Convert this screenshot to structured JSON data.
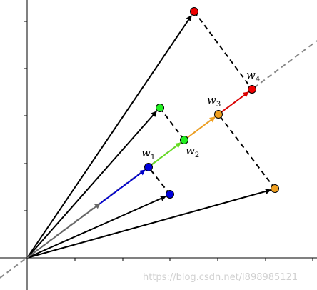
{
  "nodes": [
    {
      "base": "w",
      "sub": "1"
    },
    {
      "base": "w",
      "sub": "2"
    },
    {
      "base": "w",
      "sub": "3"
    },
    {
      "base": "w",
      "sub": "4"
    }
  ],
  "watermark": "https://blog.csdn.net/l898985121"
}
